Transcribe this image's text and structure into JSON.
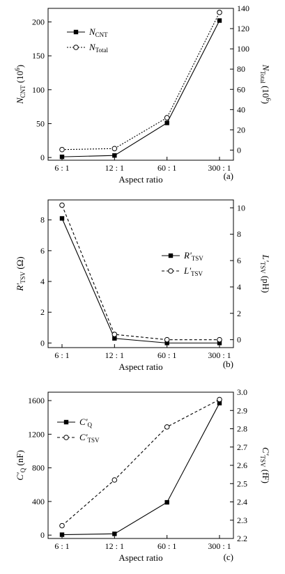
{
  "chart_data": [
    {
      "type": "line",
      "panel_label": "(a)",
      "xlabel": "Aspect ratio",
      "categories": [
        "6 : 1",
        "12 : 1",
        "60 : 1",
        "300 : 1"
      ],
      "ylabel_left": "N_CNT (10^6)",
      "ylabel_left_parts": {
        "main": "N",
        "sub": "CNT",
        "tail": " (10",
        "sup": "6",
        "end": ")"
      },
      "ylabel_right_parts": {
        "main": "N",
        "sub": "Total",
        "tail": " (10",
        "sup": "6",
        "end": ")"
      },
      "ylim_left": [
        -4,
        220
      ],
      "yticks_left": [
        "0",
        "50",
        "100",
        "150",
        "200"
      ],
      "ylim_right": [
        -10,
        140
      ],
      "yticks_right": [
        "0",
        "20",
        "40",
        "60",
        "80",
        "100",
        "120",
        "140"
      ],
      "legend_position": "top-left",
      "series": [
        {
          "name": "N_CNT",
          "name_parts": {
            "main": "N",
            "sub": "CNT"
          },
          "axis": "left",
          "marker": "filled-square",
          "line": "solid",
          "values": [
            1,
            3,
            51,
            202
          ]
        },
        {
          "name": "N_Total",
          "name_parts": {
            "main": "N",
            "sub": "Total"
          },
          "axis": "right",
          "marker": "open-circle",
          "line": "dotted",
          "values": [
            0.5,
            1.5,
            32,
            136
          ]
        }
      ]
    },
    {
      "type": "line",
      "panel_label": "(b)",
      "xlabel": "Aspect ratio",
      "categories": [
        "6 : 1",
        "12 : 1",
        "60 : 1",
        "300 : 1"
      ],
      "ylabel_left_parts": {
        "main": "R'",
        "sub": "TSV",
        "tail": " (Ω)",
        "sup": "",
        "end": ""
      },
      "ylabel_right_parts": {
        "main": "L'",
        "sub": "TSV",
        "tail": " (pH)",
        "sup": "",
        "end": ""
      },
      "ylim_left": [
        -0.3,
        9.3
      ],
      "yticks_left": [
        "0",
        "2",
        "4",
        "6",
        "8"
      ],
      "ylim_right": [
        -0.6,
        10.6
      ],
      "yticks_right": [
        "0",
        "2",
        "4",
        "6",
        "8",
        "10"
      ],
      "legend_position": "right",
      "series": [
        {
          "name": "R'TSV",
          "name_parts": {
            "main": "R'",
            "sub": "TSV"
          },
          "axis": "left",
          "marker": "filled-square",
          "line": "solid",
          "values": [
            8.1,
            0.3,
            0.0,
            0.0
          ]
        },
        {
          "name": "L'TSV",
          "name_parts": {
            "main": "L'",
            "sub": "TSV"
          },
          "axis": "right",
          "marker": "open-circle",
          "line": "dashed",
          "values": [
            10.2,
            0.4,
            0.0,
            0.0
          ]
        }
      ]
    },
    {
      "type": "line",
      "panel_label": "(c)",
      "xlabel": "Aspect ratio",
      "categories": [
        "6 : 1",
        "12 : 1",
        "60 : 1",
        "300 : 1"
      ],
      "ylabel_left_parts": {
        "main": "C'",
        "sub": "Q",
        "tail": " (nF)",
        "sup": "",
        "end": ""
      },
      "ylabel_right_parts": {
        "main": "C'",
        "sub": "TSV",
        "tail": " (fF)",
        "sup": "",
        "end": ""
      },
      "ylim_left": [
        -40,
        1700
      ],
      "yticks_left": [
        "0",
        "400",
        "800",
        "1200",
        "1600"
      ],
      "ylim_right": [
        2.2,
        3.0
      ],
      "yticks_right": [
        "2.2",
        "2.3",
        "2.4",
        "2.5",
        "2.6",
        "2.7",
        "2.8",
        "2.9",
        "3.0"
      ],
      "legend_position": "top-left",
      "series": [
        {
          "name": "C'Q",
          "name_parts": {
            "main": "C'",
            "sub": "Q"
          },
          "axis": "left",
          "marker": "filled-square",
          "line": "solid",
          "values": [
            5,
            15,
            390,
            1570
          ]
        },
        {
          "name": "C'TSV",
          "name_parts": {
            "main": "C'",
            "sub": "TSV"
          },
          "axis": "right",
          "marker": "open-circle",
          "line": "dashed",
          "values": [
            2.27,
            2.52,
            2.81,
            2.96
          ]
        }
      ]
    }
  ]
}
